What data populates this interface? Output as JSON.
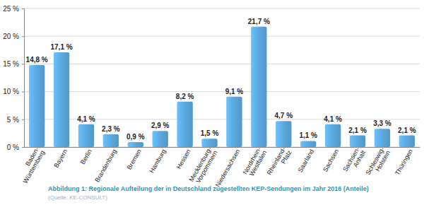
{
  "chart_data": {
    "type": "bar",
    "title": "Abbildung 1: Regionale Aufteilung der in Deutschland zugestellten KEP-Sendungen im Jahr 2016 (Anteile)",
    "subtitle": "(Quelle: KE-CONSULT)",
    "categories": [
      "Baden-Württemberg",
      "Bayern",
      "Berlin",
      "Brandenburg",
      "Bremen",
      "Hamburg",
      "Hessen",
      "Mecklenburg-Vorpommern",
      "Niedersachsen",
      "Nordrhein-Westfalen",
      "Rheinland-Pfalz",
      "Saarland",
      "Sachsen",
      "Sachsen-Anhalt",
      "Schleswig-Holstein",
      "Thüringen"
    ],
    "values": [
      14.8,
      17.1,
      4.1,
      2.3,
      0.9,
      2.9,
      8.2,
      1.5,
      9.1,
      21.7,
      4.7,
      1.1,
      4.1,
      2.1,
      3.3,
      2.1
    ],
    "value_labels": [
      "14,8 %",
      "17,1 %",
      "4,1 %",
      "2,3 %",
      "0,9 %",
      "2,9 %",
      "8,2 %",
      "1,5 %",
      "9,1 %",
      "21,7 %",
      "4,7 %",
      "1,1 %",
      "4,1 %",
      "2,1 %",
      "3,3 %",
      "2,1 %"
    ],
    "color": "#5ba8de",
    "ylim": [
      0,
      25
    ],
    "yticks": [
      {
        "value": 0,
        "label": "0 %"
      },
      {
        "value": 5,
        "label": "5 %"
      },
      {
        "value": 10,
        "label": "10 %"
      },
      {
        "value": 15,
        "label": "15 %"
      },
      {
        "value": 20,
        "label": "20 %"
      },
      {
        "value": 25,
        "label": "25 %"
      }
    ],
    "grid": true,
    "data_labels": true
  }
}
